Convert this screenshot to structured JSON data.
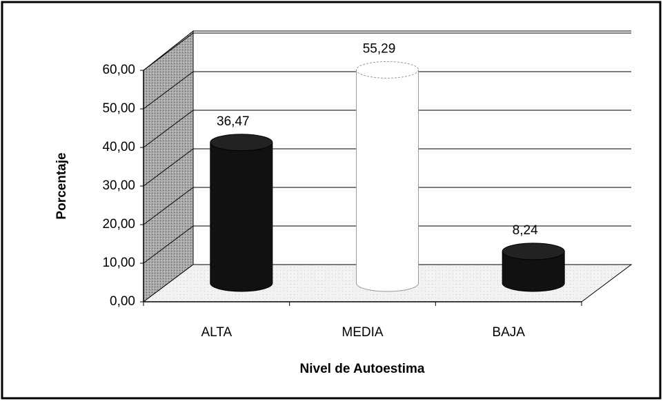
{
  "chart_data": {
    "type": "bar",
    "categories": [
      "ALTA",
      "MEDIA",
      "BAJA"
    ],
    "values": [
      36.47,
      55.29,
      8.24
    ],
    "value_labels": [
      "36,47",
      "55,29",
      "8,24"
    ],
    "colors": [
      "#111111",
      "#ffffff",
      "#111111"
    ],
    "ylabel": "Porcentaje",
    "xlabel": "Nivel de Autoestima",
    "ylim": [
      0,
      60
    ],
    "yticks": [
      {
        "value": 0,
        "label": "0,00"
      },
      {
        "value": 10,
        "label": "10,00"
      },
      {
        "value": 20,
        "label": "20,00"
      },
      {
        "value": 30,
        "label": "30,00"
      },
      {
        "value": 40,
        "label": "40,00"
      },
      {
        "value": 50,
        "label": "50,00"
      },
      {
        "value": 60,
        "label": "60,00"
      }
    ],
    "grid": true
  }
}
